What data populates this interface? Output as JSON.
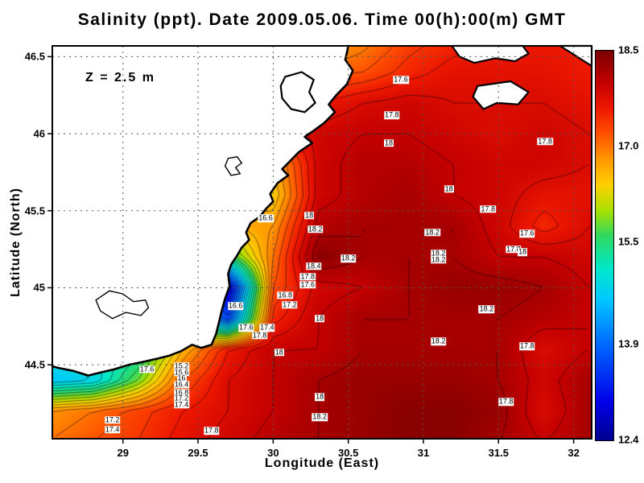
{
  "title": "Salinity (ppt). Date 2009.05.06. Time 00(h):00(m) GMT",
  "annotation": "Z = 2.5 m",
  "axes": {
    "x": {
      "label": "Longitude (East)",
      "ticks": [
        29,
        29.5,
        30,
        30.5,
        31,
        31.5,
        32
      ]
    },
    "y": {
      "label": "Latitude (North)",
      "ticks": [
        44.5,
        45,
        45.5,
        46,
        46.5
      ]
    }
  },
  "colorbar": {
    "labels": [
      "18.5",
      "17.0",
      "15.5",
      "13.9",
      "12.4"
    ]
  },
  "chart_data": {
    "type": "heatmap",
    "title": "Salinity (ppt). Date 2009.05.06. Time 00(h):00(m) GMT",
    "xlabel": "Longitude (East)",
    "ylabel": "Latitude (North)",
    "units": "ppt",
    "depth_annotation": "Z = 2.5 m",
    "xlim": [
      28.53,
      32.12
    ],
    "ylim": [
      44.02,
      46.57
    ],
    "zlim": [
      12.4,
      18.5
    ],
    "grid": {
      "lons": [
        28.5,
        28.8,
        29.1,
        29.4,
        29.7,
        30.0,
        30.3,
        30.6,
        30.9,
        31.2,
        31.5,
        31.8,
        32.1
      ],
      "lats": [
        46.6,
        46.4,
        46.2,
        46.0,
        45.8,
        45.6,
        45.4,
        45.2,
        45.0,
        44.8,
        44.6,
        44.4,
        44.2,
        44.0
      ],
      "salinity": [
        [
          17.0,
          17.0,
          17.0,
          17.0,
          17.0,
          16.9,
          16.6,
          16.9,
          17.3,
          17.5,
          17.6,
          17.6,
          17.6
        ],
        [
          17.0,
          17.0,
          17.0,
          17.0,
          17.0,
          17.0,
          17.1,
          17.2,
          17.5,
          17.7,
          17.7,
          17.7,
          17.6
        ],
        [
          17.2,
          17.2,
          17.2,
          17.2,
          17.2,
          17.3,
          17.6,
          17.8,
          17.9,
          17.8,
          17.8,
          17.8,
          17.7
        ],
        [
          17.4,
          17.4,
          17.4,
          17.4,
          17.3,
          17.5,
          17.9,
          18.0,
          18.0,
          17.9,
          17.8,
          17.9,
          17.8
        ],
        [
          16.8,
          16.8,
          16.8,
          16.8,
          16.8,
          16.6,
          17.9,
          18.1,
          18.1,
          18.0,
          17.9,
          17.9,
          17.8
        ],
        [
          16.5,
          16.5,
          16.5,
          16.5,
          16.5,
          16.4,
          17.9,
          18.1,
          18.2,
          18.0,
          17.9,
          17.7,
          17.7
        ],
        [
          16.6,
          16.6,
          16.6,
          16.6,
          16.6,
          16.8,
          18.1,
          18.2,
          18.2,
          18.2,
          17.9,
          17.5,
          17.8
        ],
        [
          16.0,
          16.0,
          16.0,
          16.0,
          15.5,
          17.0,
          18.4,
          18.2,
          18.2,
          18.2,
          18.0,
          18.0,
          17.9
        ],
        [
          15.0,
          15.0,
          15.0,
          15.0,
          12.8,
          17.2,
          17.9,
          18.0,
          18.2,
          18.3,
          18.3,
          18.2,
          18.0
        ],
        [
          15.5,
          15.5,
          15.5,
          15.5,
          13.6,
          17.5,
          18.0,
          18.2,
          18.2,
          18.2,
          18.2,
          18.1,
          18.0
        ],
        [
          15.0,
          15.0,
          15.2,
          16.6,
          17.6,
          18.0,
          18.0,
          18.2,
          18.2,
          18.2,
          18.2,
          17.8,
          18.0
        ],
        [
          14.6,
          14.8,
          15.8,
          17.2,
          17.8,
          18.0,
          18.2,
          18.3,
          18.3,
          18.3,
          18.2,
          17.9,
          18.2
        ],
        [
          16.8,
          17.0,
          17.3,
          17.6,
          17.8,
          18.0,
          18.2,
          18.3,
          18.4,
          18.4,
          18.3,
          17.8,
          18.2
        ],
        [
          17.0,
          17.2,
          17.4,
          17.7,
          17.9,
          18.1,
          18.2,
          18.3,
          18.4,
          18.4,
          18.2,
          18.0,
          18.2
        ]
      ]
    },
    "colormap": [
      [
        12.4,
        "#000090"
      ],
      [
        13.0,
        "#0000e8"
      ],
      [
        13.9,
        "#0068ff"
      ],
      [
        14.6,
        "#00c8ff"
      ],
      [
        15.1,
        "#00e8c8"
      ],
      [
        15.6,
        "#30d860"
      ],
      [
        16.0,
        "#a8e000"
      ],
      [
        16.4,
        "#ffd000"
      ],
      [
        16.8,
        "#ff9800"
      ],
      [
        17.2,
        "#ff5000"
      ],
      [
        17.6,
        "#ee1800"
      ],
      [
        18.0,
        "#c40000"
      ],
      [
        18.5,
        "#7a0000"
      ]
    ],
    "contours": {
      "interval": 0.2,
      "min": 12.6,
      "max": 18.4
    },
    "contour_labels": [
      [
        30.85,
        46.35,
        "17.6"
      ],
      [
        30.79,
        46.12,
        "17.8"
      ],
      [
        30.77,
        45.94,
        "18"
      ],
      [
        31.81,
        45.95,
        "17.8"
      ],
      [
        31.17,
        45.64,
        "18"
      ],
      [
        31.43,
        45.51,
        "17.8"
      ],
      [
        29.95,
        45.45,
        "16.6"
      ],
      [
        30.24,
        45.47,
        "18"
      ],
      [
        30.28,
        45.38,
        "18.2"
      ],
      [
        31.06,
        45.36,
        "18.2"
      ],
      [
        31.69,
        45.35,
        "17.6"
      ],
      [
        31.6,
        45.25,
        "17.8"
      ],
      [
        31.66,
        45.23,
        "18"
      ],
      [
        31.1,
        45.22,
        "18.2"
      ],
      [
        31.1,
        45.18,
        "18.2"
      ],
      [
        30.27,
        45.14,
        "18.4"
      ],
      [
        30.5,
        45.19,
        "18.2"
      ],
      [
        30.23,
        45.07,
        "17.8"
      ],
      [
        30.23,
        45.02,
        "17.6"
      ],
      [
        30.08,
        44.95,
        "16.8"
      ],
      [
        30.11,
        44.89,
        "17.2"
      ],
      [
        29.75,
        44.88,
        "16.6"
      ],
      [
        29.82,
        44.74,
        "17.6"
      ],
      [
        29.96,
        44.74,
        "17.4"
      ],
      [
        29.91,
        44.69,
        "17.8"
      ],
      [
        30.31,
        44.8,
        "18"
      ],
      [
        31.42,
        44.86,
        "18.2"
      ],
      [
        30.04,
        44.58,
        "18"
      ],
      [
        31.1,
        44.65,
        "18.2"
      ],
      [
        31.69,
        44.62,
        "17.8"
      ],
      [
        29.16,
        44.47,
        "17.6"
      ],
      [
        29.39,
        44.49,
        "15.2"
      ],
      [
        29.39,
        44.45,
        "15.6"
      ],
      [
        29.39,
        44.41,
        "16"
      ],
      [
        29.39,
        44.37,
        "16.4"
      ],
      [
        29.39,
        44.32,
        "16.8"
      ],
      [
        29.39,
        44.28,
        "17.2"
      ],
      [
        29.39,
        44.24,
        "17.4"
      ],
      [
        30.31,
        44.29,
        "18"
      ],
      [
        30.31,
        44.16,
        "18.2"
      ],
      [
        31.55,
        44.26,
        "17.8"
      ],
      [
        28.93,
        44.14,
        "17.2"
      ],
      [
        28.93,
        44.08,
        "17.4"
      ],
      [
        29.59,
        44.07,
        "17.8"
      ]
    ],
    "geo": {
      "mainland": [
        [
          30.5,
          46.57
        ],
        [
          30.48,
          46.48
        ],
        [
          30.53,
          46.41
        ],
        [
          30.49,
          46.32
        ],
        [
          30.42,
          46.25
        ],
        [
          30.37,
          46.19
        ],
        [
          30.41,
          46.14
        ],
        [
          30.34,
          46.07
        ],
        [
          30.27,
          46.02
        ],
        [
          30.21,
          45.98
        ],
        [
          30.26,
          45.94
        ],
        [
          30.17,
          45.88
        ],
        [
          30.11,
          45.82
        ],
        [
          30.06,
          45.77
        ],
        [
          30.1,
          45.73
        ],
        [
          30.03,
          45.68
        ],
        [
          29.98,
          45.61
        ],
        [
          30.0,
          45.56
        ],
        [
          29.95,
          45.51
        ],
        [
          29.91,
          45.46
        ],
        [
          29.85,
          45.42
        ],
        [
          29.82,
          45.36
        ],
        [
          29.84,
          45.31
        ],
        [
          29.79,
          45.26
        ],
        [
          29.76,
          45.21
        ],
        [
          29.72,
          45.15
        ],
        [
          29.7,
          45.09
        ],
        [
          29.71,
          45.01
        ],
        [
          29.68,
          44.93
        ],
        [
          29.66,
          44.86
        ],
        [
          29.64,
          44.78
        ],
        [
          29.62,
          44.7
        ],
        [
          29.59,
          44.63
        ],
        [
          29.52,
          44.61
        ],
        [
          29.46,
          44.63
        ],
        [
          29.39,
          44.59
        ],
        [
          29.31,
          44.56
        ],
        [
          29.23,
          44.54
        ],
        [
          29.14,
          44.52
        ],
        [
          29.04,
          44.5
        ],
        [
          28.94,
          44.47
        ],
        [
          28.85,
          44.45
        ],
        [
          28.77,
          44.43
        ],
        [
          28.67,
          44.46
        ],
        [
          28.57,
          44.48
        ],
        [
          28.53,
          44.49
        ]
      ],
      "mainland_close": [
        [
          28.53,
          46.57
        ]
      ],
      "islands": [
        [
          [
            31.19,
            46.57
          ],
          [
            31.66,
            46.57
          ],
          [
            31.7,
            46.52
          ],
          [
            31.61,
            46.47
          ],
          [
            31.48,
            46.49
          ],
          [
            31.34,
            46.46
          ],
          [
            31.24,
            46.5
          ]
        ],
        [
          [
            31.36,
            46.31
          ],
          [
            31.58,
            46.34
          ],
          [
            31.7,
            46.27
          ],
          [
            31.63,
            46.19
          ],
          [
            31.49,
            46.2
          ],
          [
            31.4,
            46.16
          ],
          [
            31.33,
            46.24
          ]
        ],
        [
          [
            31.91,
            46.57
          ],
          [
            32.12,
            46.57
          ],
          [
            32.12,
            46.44
          ]
        ],
        [
          [
            30.08,
            46.37
          ],
          [
            30.19,
            46.4
          ],
          [
            30.27,
            46.35
          ],
          [
            30.24,
            46.27
          ],
          [
            30.28,
            46.2
          ],
          [
            30.21,
            46.14
          ],
          [
            30.12,
            46.16
          ],
          [
            30.06,
            46.23
          ],
          [
            30.05,
            46.31
          ]
        ]
      ],
      "lagoons": [
        [
          [
            28.82,
            44.92
          ],
          [
            28.91,
            44.98
          ],
          [
            29.0,
            44.96
          ],
          [
            29.07,
            44.91
          ],
          [
            29.15,
            44.92
          ],
          [
            29.17,
            44.87
          ],
          [
            29.12,
            44.82
          ],
          [
            29.02,
            44.84
          ],
          [
            28.93,
            44.8
          ],
          [
            28.85,
            44.85
          ]
        ],
        [
          [
            29.7,
            45.84
          ],
          [
            29.76,
            45.85
          ],
          [
            29.79,
            45.81
          ],
          [
            29.75,
            45.78
          ],
          [
            29.78,
            45.74
          ],
          [
            29.72,
            45.73
          ],
          [
            29.68,
            45.79
          ]
        ]
      ]
    }
  }
}
